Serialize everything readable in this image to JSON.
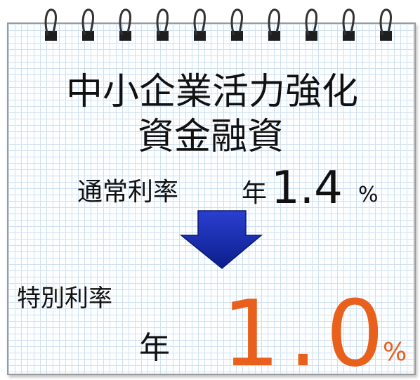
{
  "title_line1": "中小企業活力強化",
  "title_line2": "資金融資",
  "normal": {
    "label": "通常利率",
    "prefix": "年",
    "rate": "1.4",
    "unit": "%"
  },
  "special": {
    "label": "特別利率",
    "prefix": "年",
    "rate": "1.0",
    "unit": "%"
  }
}
